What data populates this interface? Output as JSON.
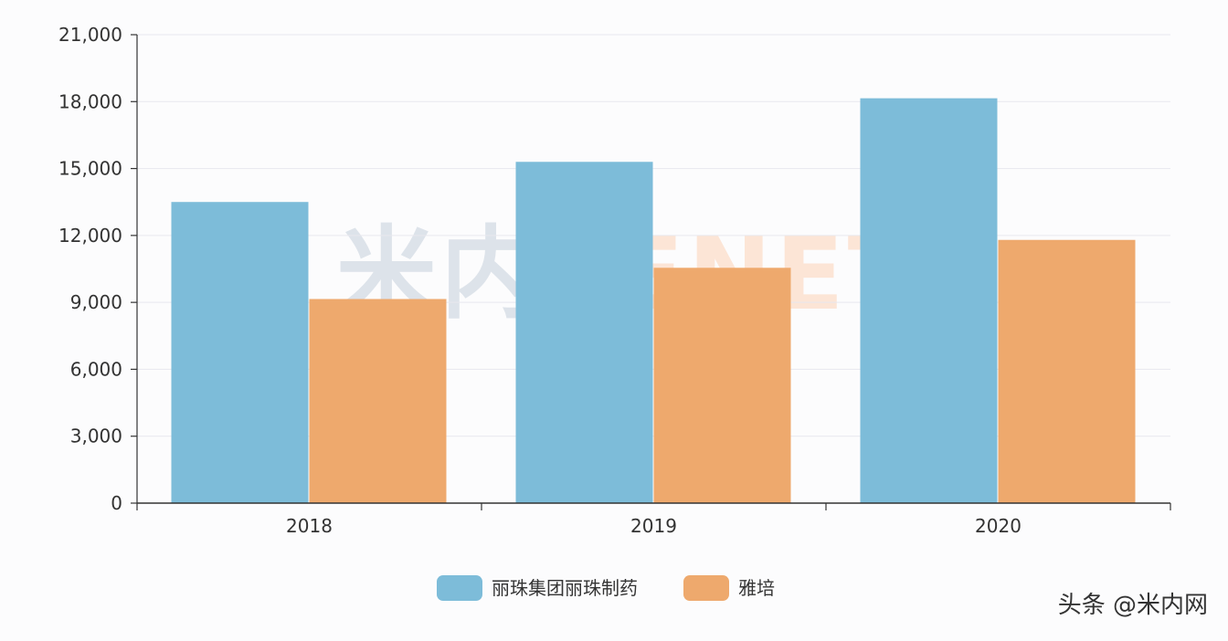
{
  "chart_data": {
    "type": "bar",
    "categories": [
      "2018",
      "2019",
      "2020"
    ],
    "series": [
      {
        "name": "丽珠集团丽珠制药",
        "values": [
          13500,
          15300,
          18150
        ],
        "color": "#7dbcd9"
      },
      {
        "name": "雅培",
        "values": [
          9150,
          10550,
          11800
        ],
        "color": "#eea96d"
      }
    ],
    "y_ticks": [
      "0",
      "3,000",
      "6,000",
      "9,000",
      "12,000",
      "15,000",
      "18,000",
      "21,000"
    ],
    "ylim": [
      0,
      21000
    ],
    "grid": true,
    "legend_position": "bottom-center"
  },
  "watermark": {
    "left_text": "米内",
    "right_text": "MENET",
    "left_color": "#dde3ea",
    "right_color": "#fce5d6"
  },
  "credit": {
    "text": "头条 @米内网"
  }
}
